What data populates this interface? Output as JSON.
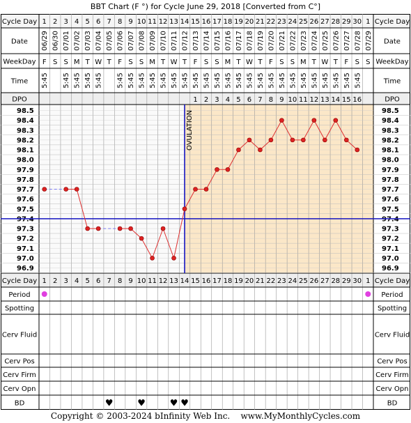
{
  "title": "BBT Chart (F °) for Cycle June 29, 2018  [Converted from C°]",
  "row_labels": {
    "cycle_day": "Cycle Day",
    "date": "Date",
    "weekday": "WeekDay",
    "time": "Time",
    "dpo": "DPO",
    "period": "Period",
    "spotting": "Spotting",
    "cerv_fluid": "Cerv Fluid",
    "cerv_pos": "Cerv Pos",
    "cerv_firm": "Cerv Firm",
    "cerv_opn": "Cerv Opn",
    "bd": "BD"
  },
  "columns": {
    "cycle_days": [
      "1",
      "2",
      "3",
      "4",
      "5",
      "6",
      "7",
      "8",
      "9",
      "10",
      "11",
      "12",
      "13",
      "14",
      "15",
      "16",
      "17",
      "18",
      "19",
      "20",
      "21",
      "22",
      "23",
      "24",
      "25",
      "26",
      "27",
      "28",
      "29",
      "30",
      "1"
    ],
    "dates": [
      "06/29",
      "06/30",
      "07/01",
      "07/02",
      "07/03",
      "07/04",
      "07/05",
      "07/06",
      "07/07",
      "07/08",
      "07/09",
      "07/10",
      "07/11",
      "07/12",
      "07/13",
      "07/14",
      "07/15",
      "07/16",
      "07/17",
      "07/18",
      "07/19",
      "07/20",
      "07/21",
      "07/22",
      "07/23",
      "07/24",
      "07/25",
      "07/26",
      "07/27",
      "07/28",
      "07/29"
    ],
    "weekdays": [
      "F",
      "S",
      "S",
      "M",
      "T",
      "W",
      "T",
      "F",
      "S",
      "S",
      "M",
      "T",
      "W",
      "T",
      "F",
      "S",
      "S",
      "M",
      "T",
      "W",
      "T",
      "F",
      "S",
      "S",
      "M",
      "T",
      "W",
      "T",
      "F",
      "S",
      "S"
    ],
    "times": [
      "5:45",
      "",
      "5:45",
      "5:45",
      "5:45",
      "5:45",
      "",
      "5:45",
      "5:45",
      "5:45",
      "5:45",
      "5:45",
      "5:45",
      "5:45",
      "5:45",
      "5:45",
      "5:45",
      "5:45",
      "5:45",
      "5:45",
      "5:45",
      "5:45",
      "5:45",
      "5:45",
      "5:45",
      "5:45",
      "5:45",
      "5:45",
      "5:45",
      "5:45",
      ""
    ],
    "dpo": [
      "",
      "",
      "",
      "",
      "",
      "",
      "",
      "",
      "",
      "",
      "",
      "",
      "",
      "",
      "1",
      "2",
      "3",
      "4",
      "5",
      "6",
      "7",
      "8",
      "9",
      "10",
      "11",
      "12",
      "13",
      "14",
      "15",
      "16",
      ""
    ]
  },
  "chart_data": {
    "type": "line",
    "title": "BBT Chart (F °) for Cycle June 29, 2018  [Converted from C°]",
    "xlabel": "Cycle Day",
    "ylabel": "",
    "ylim": [
      96.9,
      98.5
    ],
    "y_ticks": [
      "98.5",
      "98.4",
      "98.3",
      "98.2",
      "98.1",
      "98.0",
      "97.9",
      "97.8",
      "97.7",
      "97.6",
      "97.5",
      "97.4",
      "97.3",
      "97.2",
      "97.1",
      "97.0",
      "96.9"
    ],
    "x": [
      1,
      3,
      4,
      5,
      6,
      8,
      9,
      10,
      11,
      12,
      13,
      14,
      15,
      16,
      17,
      18,
      19,
      20,
      21,
      22,
      23,
      24,
      25,
      26,
      27,
      28,
      29,
      30
    ],
    "values": [
      97.7,
      97.7,
      97.7,
      97.3,
      97.3,
      97.3,
      97.3,
      97.2,
      97.0,
      97.3,
      97.0,
      97.5,
      97.7,
      97.7,
      97.9,
      97.9,
      98.1,
      98.2,
      98.1,
      98.2,
      98.4,
      98.2,
      98.2,
      98.4,
      98.2,
      98.4,
      98.2,
      98.1
    ],
    "coverline": 97.4,
    "ovulation_day": 14,
    "ovulation_label": "OVULATION",
    "period_days": [
      1,
      31
    ],
    "bd_days": [
      7,
      10,
      13,
      14
    ],
    "grid": true,
    "colors": {
      "line": "#e03030",
      "point": "#dd2222",
      "coverline": "#1515c0",
      "post_ovulation_fill": "#fbe7c8",
      "pre_ovulation_fill": "#fafafa",
      "period": "#e040e0",
      "bd": "#e0307a",
      "header_fill": "#eeeeee"
    }
  },
  "footer": {
    "copyright": "Copyright © 2003-2024 bInfinity Web Inc.    www.MyMonthlyCycles.com"
  }
}
